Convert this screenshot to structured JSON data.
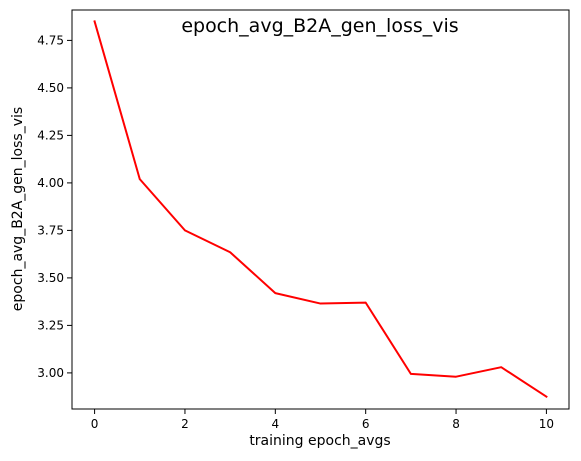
{
  "chart_data": {
    "type": "line",
    "title": "epoch_avg_B2A_gen_loss_vis",
    "xlabel": "training epoch_avgs",
    "ylabel": "epoch_avg_B2A_gen_loss_vis",
    "xlim": [
      -0.5,
      10.5
    ],
    "ylim": [
      2.81,
      4.91
    ],
    "xticks": [
      0,
      2,
      4,
      6,
      8,
      10
    ],
    "xtick_labels": [
      "0",
      "2",
      "4",
      "6",
      "8",
      "10"
    ],
    "yticks": [
      3.0,
      3.25,
      3.5,
      3.75,
      4.0,
      4.25,
      4.5,
      4.75
    ],
    "ytick_labels": [
      "3.00",
      "3.25",
      "3.50",
      "3.75",
      "4.00",
      "4.25",
      "4.50",
      "4.75"
    ],
    "grid": false,
    "legend": "none",
    "line_color": "#ff0000",
    "series": [
      {
        "x": [
          0,
          1,
          2,
          3,
          4,
          5,
          6,
          7,
          8,
          9,
          10
        ],
        "y": [
          4.85,
          4.02,
          3.75,
          3.635,
          3.42,
          3.365,
          3.37,
          2.995,
          2.98,
          3.03,
          2.875
        ]
      }
    ]
  }
}
